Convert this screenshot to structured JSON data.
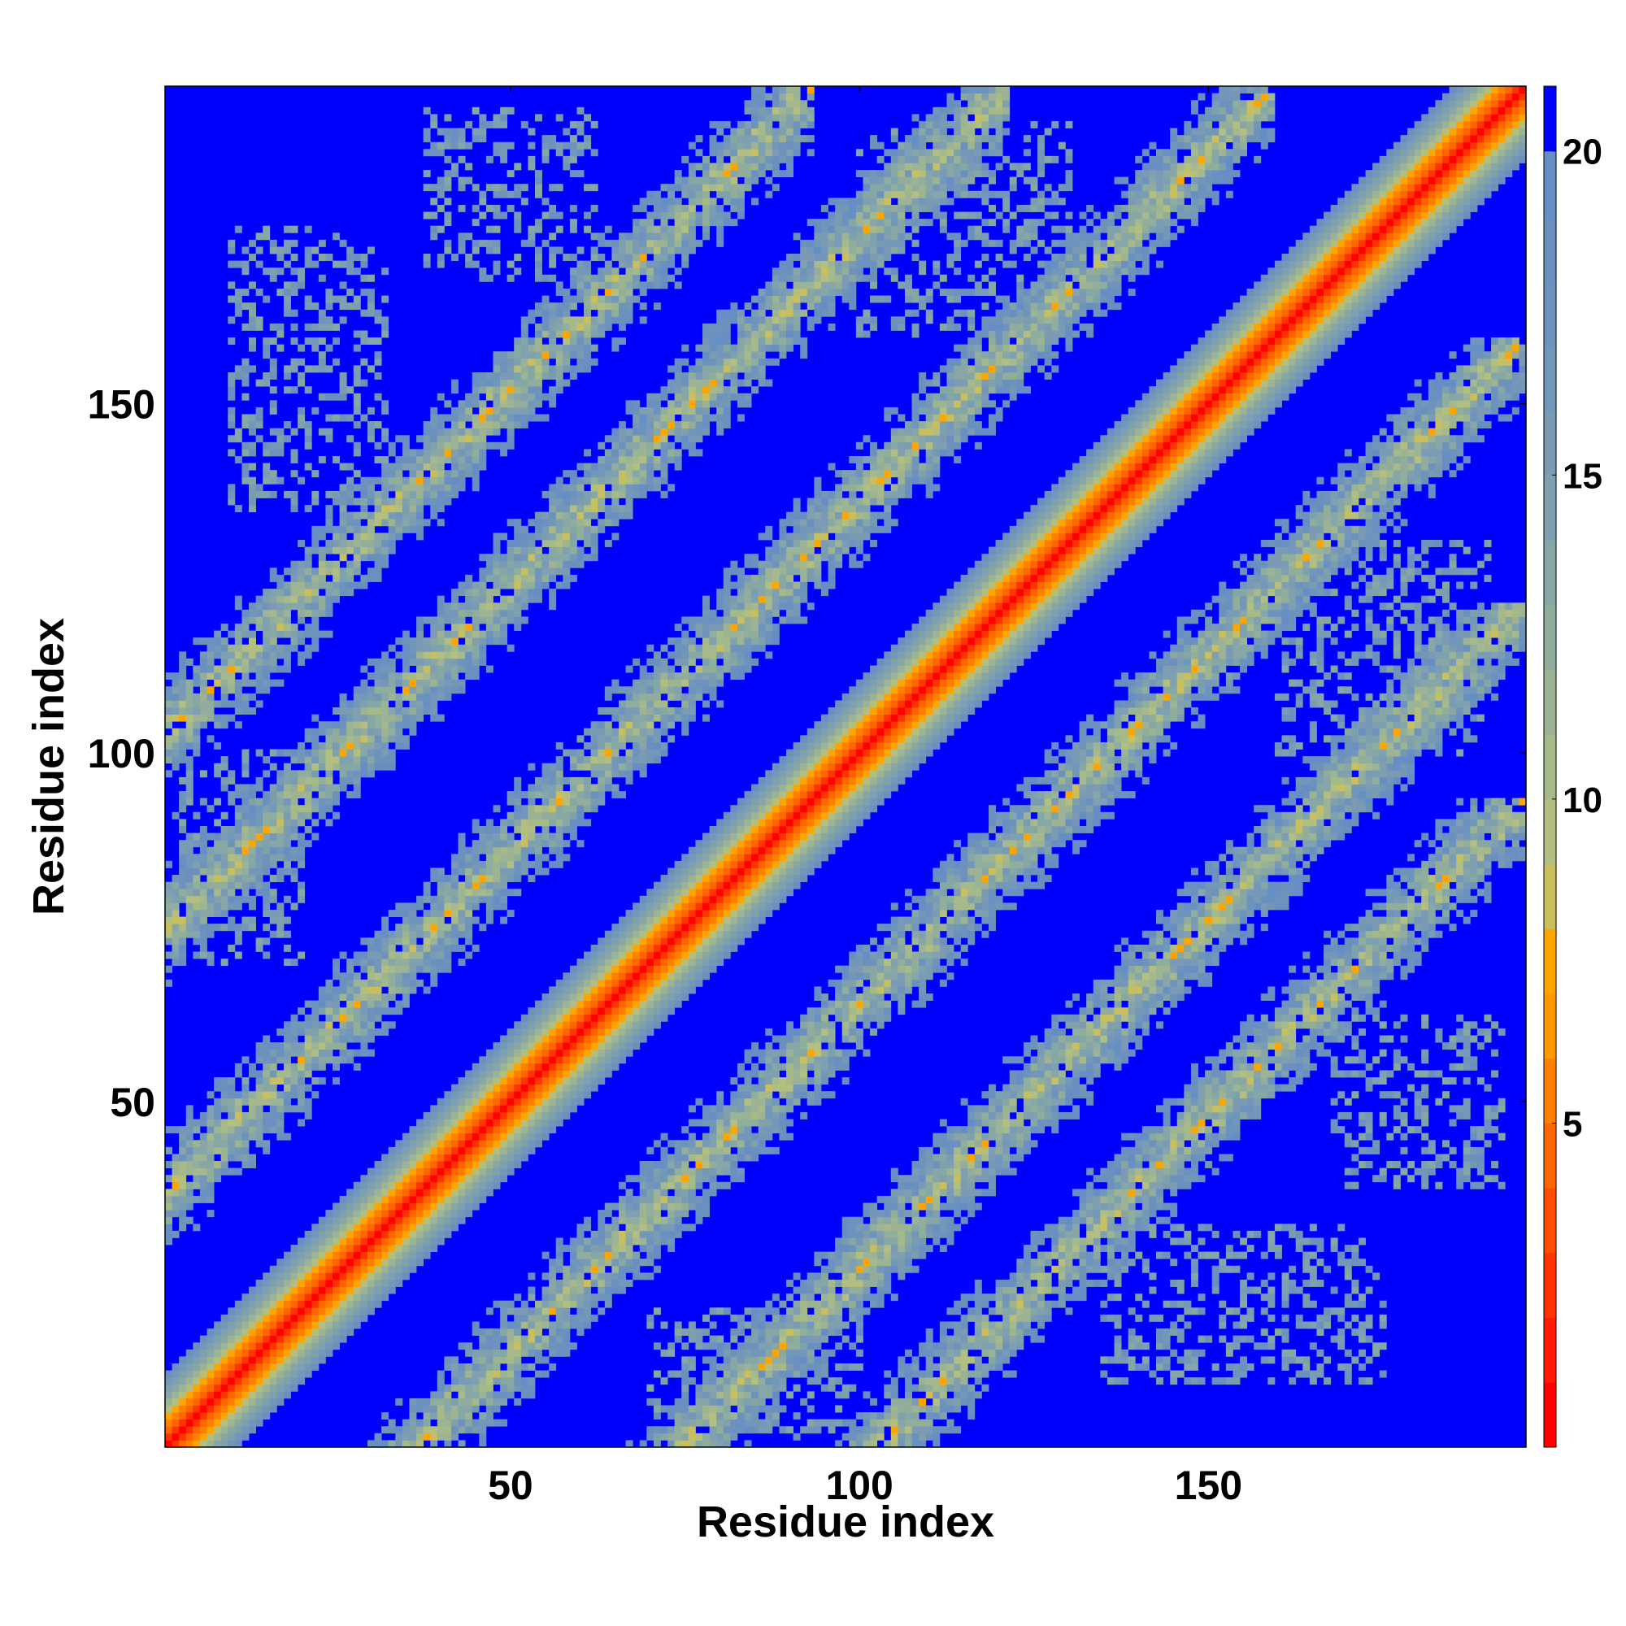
{
  "chart_data": {
    "type": "heatmap",
    "title": "",
    "xlabel": "Residue index",
    "ylabel": "Residue index",
    "n_residues": 195,
    "xlim": [
      1,
      195
    ],
    "ylim": [
      1,
      195
    ],
    "x_ticks": [
      50,
      100,
      150
    ],
    "y_ticks": [
      50,
      100,
      150
    ],
    "x_tick_labels": [
      "50",
      "100",
      "150"
    ],
    "y_tick_labels": [
      "50",
      "100",
      "150"
    ],
    "matrix_description": "symmetric residue-residue C-alpha distance map; red along the diagonal, perpendicular beta-sheet contact bands, blue beyond cutoff",
    "value_range": [
      0,
      21
    ],
    "cutoff_value": 21,
    "colorbar": {
      "ticks": [
        5,
        10,
        15,
        20
      ],
      "tick_labels": [
        "5",
        "10",
        "15",
        "20"
      ],
      "levels": [
        {
          "from": 0,
          "to": 1,
          "color": "#ff0000"
        },
        {
          "from": 1,
          "to": 2,
          "color": "#ff1a00"
        },
        {
          "from": 2,
          "to": 3,
          "color": "#ff3300"
        },
        {
          "from": 3,
          "to": 4,
          "color": "#ff4d00"
        },
        {
          "from": 4,
          "to": 5,
          "color": "#ff6600"
        },
        {
          "from": 5,
          "to": 6,
          "color": "#ff8000"
        },
        {
          "from": 6,
          "to": 7,
          "color": "#ff9900"
        },
        {
          "from": 7,
          "to": 8,
          "color": "#ffa500"
        },
        {
          "from": 8,
          "to": 9,
          "color": "#c9bf5e"
        },
        {
          "from": 9,
          "to": 10,
          "color": "#b2bf80"
        },
        {
          "from": 10,
          "to": 11,
          "color": "#a6b98a"
        },
        {
          "from": 11,
          "to": 12,
          "color": "#9cb494"
        },
        {
          "from": 12,
          "to": 13,
          "color": "#91ad9c"
        },
        {
          "from": 13,
          "to": 14,
          "color": "#87a6a6"
        },
        {
          "from": 14,
          "to": 15,
          "color": "#7fa0ae"
        },
        {
          "from": 15,
          "to": 16,
          "color": "#7a9bb3"
        },
        {
          "from": 16,
          "to": 17,
          "color": "#7397b9"
        },
        {
          "from": 17,
          "to": 18,
          "color": "#6d93bd"
        },
        {
          "from": 18,
          "to": 19,
          "color": "#6a90c0"
        },
        {
          "from": 19,
          "to": 20,
          "color": "#668dc4"
        },
        {
          "from": 20,
          "to": 21,
          "color": "#0000ff"
        }
      ]
    },
    "contact_bands": [
      {
        "type": "anti",
        "center": 178,
        "from": [
          150,
          195
        ]
      },
      {
        "type": "anti",
        "center": 154,
        "from": [
          122,
          186
        ]
      },
      {
        "type": "anti",
        "center": 126,
        "from": [
          100,
          152
        ]
      },
      {
        "type": "anti",
        "center": 100,
        "from": [
          72,
          128
        ]
      },
      {
        "type": "anti",
        "center": 228,
        "from": [
          172,
          195
        ]
      },
      {
        "type": "anti",
        "center": 202,
        "from": [
          158,
          195
        ]
      },
      {
        "type": "anti",
        "center": 252,
        "from": [
          180,
          195
        ]
      },
      {
        "type": "par",
        "offset": 74,
        "from": [
          1,
          121
        ]
      },
      {
        "type": "par",
        "offset": 36,
        "from": [
          1,
          159
        ]
      },
      {
        "type": "par",
        "offset": 102,
        "from": [
          1,
          93
        ]
      }
    ],
    "speckle_regions": [
      {
        "x": [
          45,
          62
        ],
        "y": [
          168,
          192
        ]
      },
      {
        "x": [
          10,
          32
        ],
        "y": [
          135,
          170
        ]
      },
      {
        "x": [
          170,
          192
        ],
        "y": [
          38,
          58
        ]
      },
      {
        "x": [
          145,
          175
        ],
        "y": [
          10,
          30
        ]
      },
      {
        "x": [
          160,
          190
        ],
        "y": [
          100,
          130
        ]
      },
      {
        "x": [
          2,
          20
        ],
        "y": [
          70,
          100
        ]
      }
    ]
  }
}
